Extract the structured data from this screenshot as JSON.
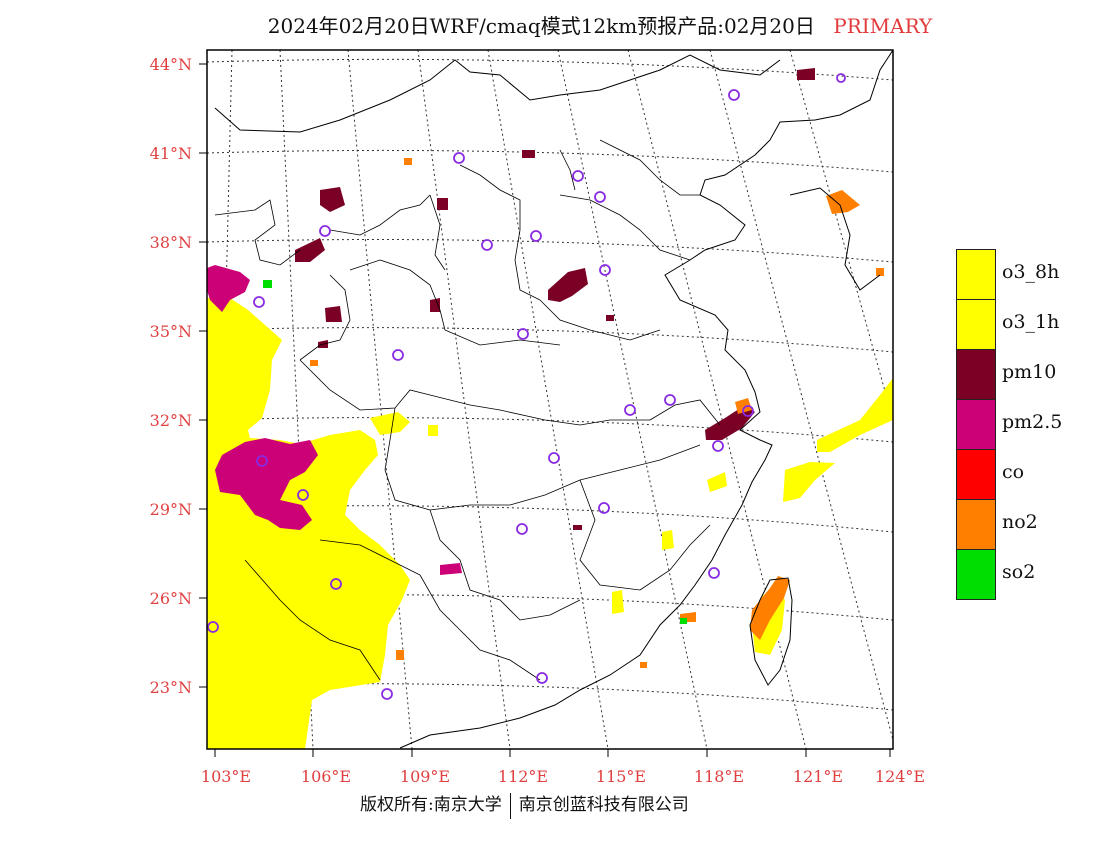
{
  "header": {
    "title": "2024年02月20日WRF/cmaq模式12km预报产品:02月20日",
    "tag": "PRIMARY"
  },
  "footer": {
    "left": "版权所有:南京大学",
    "right": "南京创蓝科技有限公司"
  },
  "axes": {
    "lat_labels": [
      "44°N",
      "41°N",
      "38°N",
      "35°N",
      "32°N",
      "29°N",
      "26°N",
      "23°N"
    ],
    "lon_labels": [
      "103°E",
      "106°E",
      "109°E",
      "112°E",
      "115°E",
      "118°E",
      "121°E",
      "124°E"
    ]
  },
  "legend": [
    {
      "label": "o3_8h",
      "color": "#ffff00"
    },
    {
      "label": "o3_1h",
      "color": "#ffff00"
    },
    {
      "label": "pm10",
      "color": "#7a0026"
    },
    {
      "label": "pm2.5",
      "color": "#cc0077"
    },
    {
      "label": "co",
      "color": "#ff0000"
    },
    {
      "label": "no2",
      "color": "#ff7f00"
    },
    {
      "label": "so2",
      "color": "#00dd00"
    }
  ],
  "colors": {
    "frame": "#000000",
    "tick_label": "#e04040",
    "station_marker": "#8a2be2"
  }
}
